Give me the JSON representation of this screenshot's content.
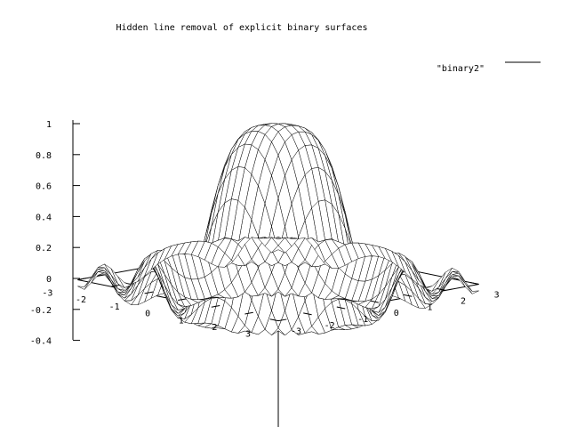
{
  "chart_data": {
    "type": "surface",
    "title": "Hidden line removal of explicit binary surfaces",
    "series": [
      {
        "name": "\"binary2\"",
        "function": "sin(x^2+y^2)/(x^2+y^2)"
      }
    ],
    "x_range": [
      -3,
      3
    ],
    "y_range": [
      -3,
      3
    ],
    "zlim": [
      -0.4,
      1
    ],
    "x_ticks": [
      "-3",
      "-2",
      "-1",
      "0",
      "1",
      "2",
      "3"
    ],
    "y_ticks": [
      "-3",
      "-2",
      "-1",
      "0",
      "1",
      "2",
      "3"
    ],
    "z_ticks": [
      "-0.4",
      "-0.2",
      "0",
      "0.2",
      "0.4",
      "0.6",
      "0.8",
      "1"
    ],
    "z_tick_values": [
      -0.4,
      -0.2,
      0,
      0.2,
      0.4,
      0.6,
      0.8,
      1
    ],
    "grid": false,
    "legend_position": "top-right",
    "hidden_line_removal": true
  }
}
